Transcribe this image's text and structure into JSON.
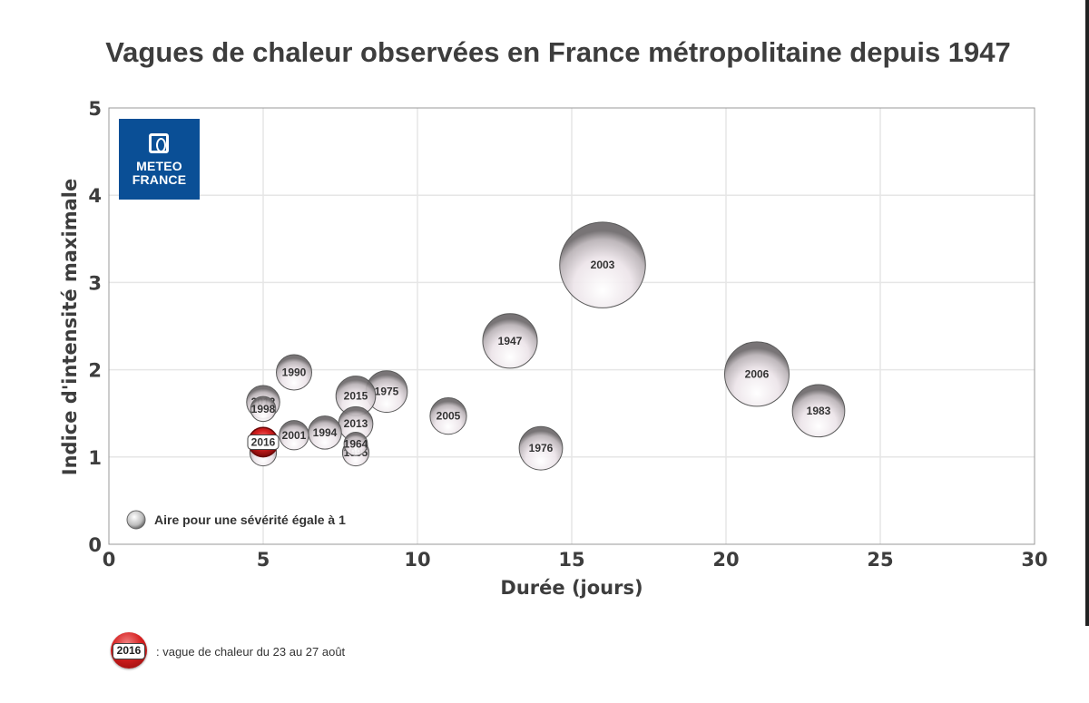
{
  "chart_data": {
    "type": "scatter",
    "subtype": "bubble",
    "title": "Vagues de chaleur observées en France métropolitaine depuis 1947",
    "xlabel": "Durée (jours)",
    "ylabel": "Indice d'intensité maximale",
    "xlim": [
      0,
      30
    ],
    "ylim": [
      0,
      5
    ],
    "xticks": [
      0,
      5,
      10,
      15,
      20,
      25,
      30
    ],
    "yticks": [
      0,
      1,
      2,
      3,
      4,
      5
    ],
    "grid": true,
    "size_meaning": "Aire pour une sévérité égale à 1",
    "points": [
      {
        "label": "1947",
        "x": 13,
        "y": 2.33,
        "severity": 1.9
      },
      {
        "label": "2003",
        "x": 16,
        "y": 3.2,
        "severity": 4.7
      },
      {
        "label": "2006",
        "x": 21,
        "y": 1.95,
        "severity": 2.65
      },
      {
        "label": "1983",
        "x": 23,
        "y": 1.53,
        "severity": 1.75
      },
      {
        "label": "1976",
        "x": 14,
        "y": 1.1,
        "severity": 1.2
      },
      {
        "label": "2005",
        "x": 11,
        "y": 1.47,
        "severity": 0.85
      },
      {
        "label": "1975",
        "x": 9,
        "y": 1.75,
        "severity": 1.1
      },
      {
        "label": "2015",
        "x": 8,
        "y": 1.7,
        "severity": 1.0
      },
      {
        "label": "1990",
        "x": 6,
        "y": 1.97,
        "severity": 0.8
      },
      {
        "label": "2012",
        "x": 5,
        "y": 1.63,
        "severity": 0.7
      },
      {
        "label": "1998",
        "x": 5,
        "y": 1.55,
        "severity": 0.4
      },
      {
        "label": "2013",
        "x": 8,
        "y": 1.38,
        "severity": 0.75
      },
      {
        "label": "1994",
        "x": 7,
        "y": 1.28,
        "severity": 0.7
      },
      {
        "label": "2001",
        "x": 6,
        "y": 1.25,
        "severity": 0.55
      },
      {
        "label": "1964",
        "x": 8,
        "y": 1.15,
        "severity": 0.35
      },
      {
        "label": "1995",
        "x": 8,
        "y": 1.05,
        "severity": 0.45
      },
      {
        "label": "1983b",
        "display": "",
        "x": 5,
        "y": 1.05,
        "severity": 0.45
      },
      {
        "label": "2016",
        "x": 5,
        "y": 1.17,
        "severity": 0.55,
        "highlight": true
      }
    ],
    "colors": {
      "bubble": "#ece6ea",
      "bubble_edge": "#5a5a5a",
      "highlight": "#d62020",
      "grid": "#e6e6e6",
      "frame": "#999999"
    }
  },
  "logo": {
    "line1": "METEO",
    "line2": "FRANCE"
  },
  "footnote": {
    "badge": "2016",
    "text": ": vague de chaleur du 23 au 27 août"
  }
}
